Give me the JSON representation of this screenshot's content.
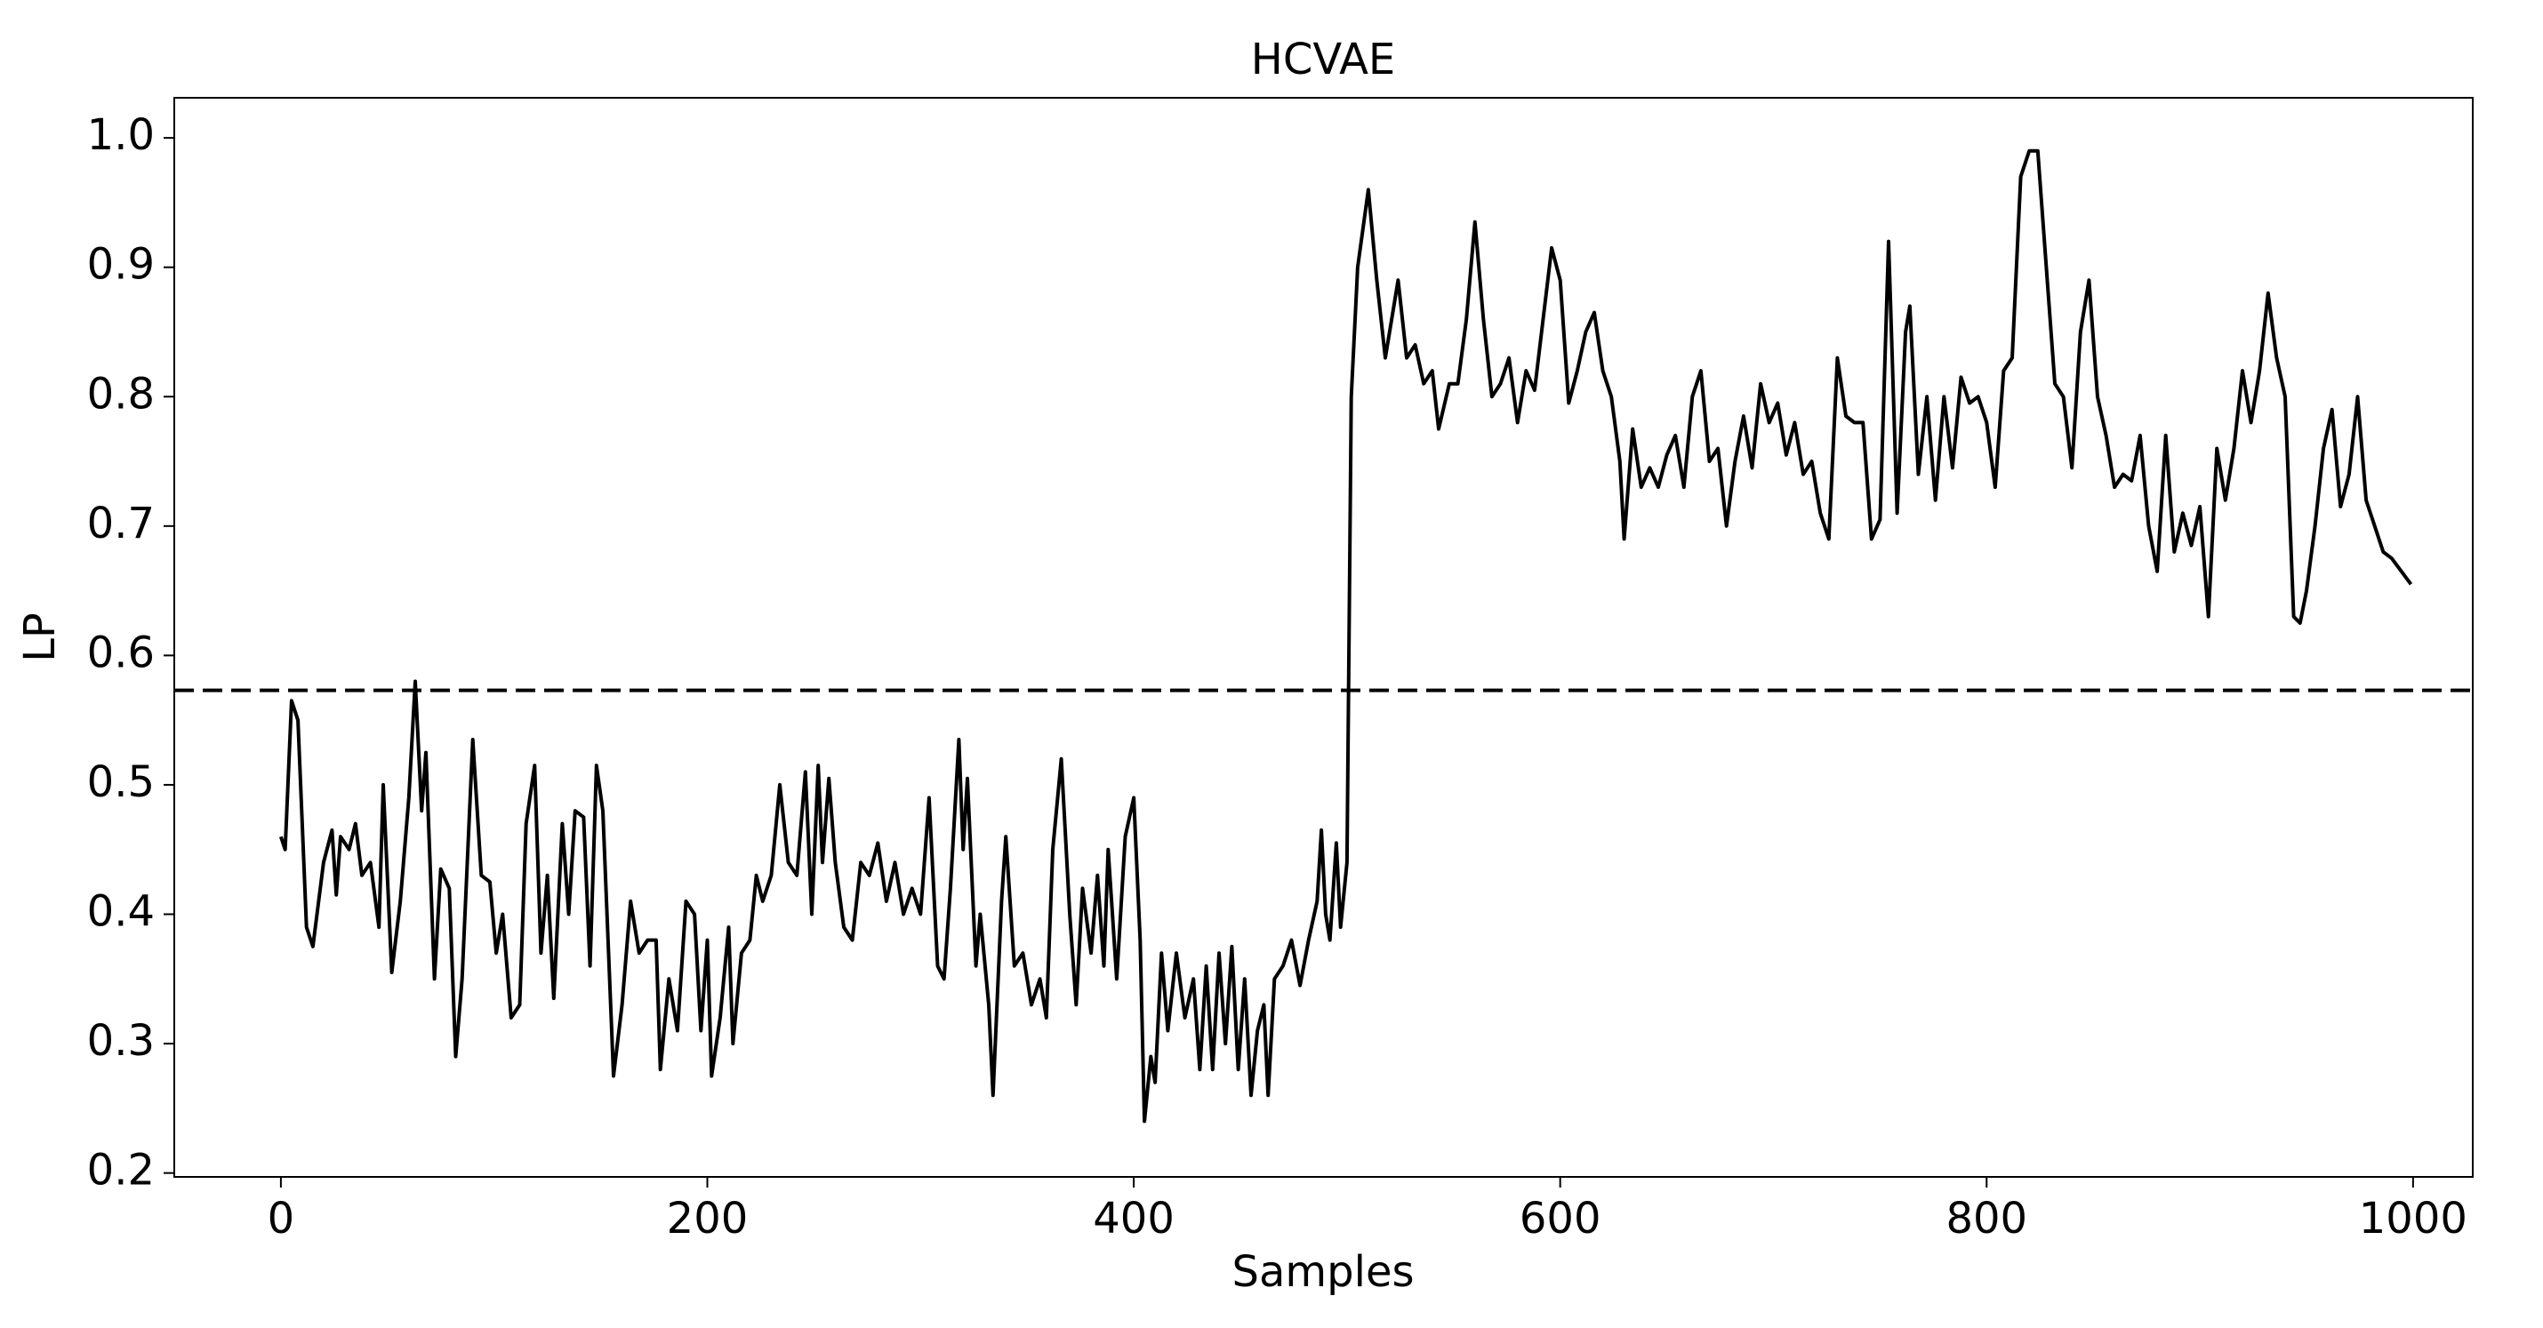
{
  "chart_data": {
    "type": "line",
    "title": "HCVAE",
    "xlabel": "Samples",
    "ylabel": "LP",
    "xlim": [
      -50,
      1028
    ],
    "ylim": [
      0.197,
      1.031
    ],
    "xticks": [
      0,
      200,
      400,
      600,
      800,
      1000
    ],
    "yticks": [
      0.2,
      0.3,
      0.4,
      0.5,
      0.6,
      0.7,
      0.8,
      0.9,
      {
        "value": 1,
        "label": "1.0"
      }
    ],
    "threshold": 0.573,
    "threshold_style": "dashed",
    "grid": false,
    "series": [
      {
        "color": "#000000",
        "x": [
          0,
          2,
          5,
          8,
          12,
          15,
          20,
          24,
          26,
          28,
          32,
          35,
          38,
          42,
          46,
          48,
          52,
          56,
          60,
          63,
          66,
          68,
          72,
          75,
          79,
          82,
          85,
          90,
          94,
          98,
          101,
          104,
          108,
          112,
          115,
          119,
          122,
          125,
          128,
          132,
          135,
          138,
          142,
          145,
          148,
          151,
          156,
          160,
          164,
          168,
          172,
          176,
          178,
          182,
          186,
          190,
          194,
          197,
          200,
          202,
          206,
          210,
          212,
          216,
          220,
          223,
          226,
          230,
          234,
          238,
          242,
          246,
          249,
          252,
          254,
          257,
          260,
          264,
          268,
          272,
          276,
          280,
          284,
          288,
          292,
          296,
          300,
          304,
          308,
          311,
          314,
          318,
          320,
          322,
          326,
          328,
          332,
          334,
          338,
          340,
          344,
          348,
          352,
          356,
          359,
          362,
          366,
          370,
          373,
          376,
          380,
          383,
          386,
          388,
          392,
          396,
          400,
          403,
          405,
          408,
          410,
          413,
          416,
          420,
          424,
          428,
          431,
          434,
          437,
          440,
          443,
          446,
          449,
          452,
          455,
          458,
          461,
          463,
          466,
          470,
          474,
          478,
          482,
          486,
          488,
          490,
          492,
          495,
          497,
          500,
          502,
          505,
          510,
          514,
          518,
          520,
          524,
          528,
          532,
          536,
          540,
          543,
          548,
          552,
          556,
          560,
          564,
          568,
          572,
          576,
          580,
          584,
          588,
          592,
          596,
          600,
          604,
          608,
          612,
          616,
          620,
          624,
          628,
          630,
          634,
          638,
          642,
          646,
          650,
          654,
          658,
          662,
          666,
          670,
          674,
          678,
          682,
          686,
          690,
          694,
          698,
          702,
          706,
          710,
          714,
          718,
          722,
          726,
          730,
          734,
          738,
          742,
          746,
          750,
          754,
          758,
          762,
          764,
          768,
          772,
          776,
          780,
          784,
          788,
          792,
          796,
          800,
          804,
          808,
          812,
          816,
          820,
          824,
          828,
          832,
          836,
          840,
          844,
          848,
          852,
          856,
          860,
          864,
          868,
          872,
          876,
          880,
          884,
          888,
          892,
          896,
          900,
          904,
          908,
          912,
          916,
          920,
          924,
          928,
          932,
          936,
          940,
          944,
          947,
          950,
          954,
          958,
          962,
          966,
          970,
          974,
          978,
          982,
          986,
          990,
          999
        ],
        "values": [
          0.46,
          0.45,
          0.565,
          0.55,
          0.39,
          0.375,
          0.44,
          0.465,
          0.415,
          0.46,
          0.45,
          0.47,
          0.43,
          0.44,
          0.39,
          0.5,
          0.355,
          0.41,
          0.49,
          0.58,
          0.48,
          0.525,
          0.35,
          0.435,
          0.42,
          0.29,
          0.35,
          0.535,
          0.43,
          0.425,
          0.37,
          0.4,
          0.32,
          0.33,
          0.47,
          0.515,
          0.37,
          0.43,
          0.335,
          0.47,
          0.4,
          0.48,
          0.475,
          0.36,
          0.515,
          0.48,
          0.275,
          0.33,
          0.41,
          0.37,
          0.38,
          0.38,
          0.28,
          0.35,
          0.31,
          0.41,
          0.4,
          0.31,
          0.38,
          0.275,
          0.32,
          0.39,
          0.3,
          0.37,
          0.38,
          0.43,
          0.41,
          0.43,
          0.5,
          0.44,
          0.43,
          0.51,
          0.4,
          0.515,
          0.44,
          0.505,
          0.44,
          0.39,
          0.38,
          0.44,
          0.43,
          0.455,
          0.41,
          0.44,
          0.4,
          0.42,
          0.4,
          0.49,
          0.36,
          0.35,
          0.42,
          0.535,
          0.45,
          0.505,
          0.36,
          0.4,
          0.33,
          0.26,
          0.41,
          0.46,
          0.36,
          0.37,
          0.33,
          0.35,
          0.32,
          0.45,
          0.52,
          0.4,
          0.33,
          0.42,
          0.37,
          0.43,
          0.36,
          0.45,
          0.35,
          0.46,
          0.49,
          0.38,
          0.24,
          0.29,
          0.27,
          0.37,
          0.31,
          0.37,
          0.32,
          0.35,
          0.28,
          0.36,
          0.28,
          0.37,
          0.3,
          0.375,
          0.28,
          0.35,
          0.26,
          0.31,
          0.33,
          0.26,
          0.35,
          0.36,
          0.38,
          0.345,
          0.38,
          0.41,
          0.465,
          0.4,
          0.38,
          0.455,
          0.39,
          0.44,
          0.8,
          0.9,
          0.96,
          0.89,
          0.83,
          0.85,
          0.89,
          0.83,
          0.84,
          0.81,
          0.82,
          0.775,
          0.81,
          0.81,
          0.86,
          0.935,
          0.86,
          0.8,
          0.81,
          0.83,
          0.78,
          0.82,
          0.805,
          0.86,
          0.915,
          0.89,
          0.795,
          0.82,
          0.85,
          0.865,
          0.82,
          0.8,
          0.75,
          0.69,
          0.775,
          0.73,
          0.745,
          0.73,
          0.755,
          0.77,
          0.73,
          0.8,
          0.82,
          0.75,
          0.76,
          0.7,
          0.75,
          0.785,
          0.745,
          0.81,
          0.78,
          0.795,
          0.755,
          0.78,
          0.74,
          0.75,
          0.71,
          0.69,
          0.83,
          0.785,
          0.78,
          0.78,
          0.69,
          0.705,
          0.92,
          0.71,
          0.85,
          0.87,
          0.74,
          0.8,
          0.72,
          0.8,
          0.745,
          0.815,
          0.795,
          0.8,
          0.78,
          0.73,
          0.82,
          0.83,
          0.97,
          0.99,
          0.99,
          0.9,
          0.81,
          0.8,
          0.745,
          0.85,
          0.89,
          0.8,
          0.77,
          0.73,
          0.74,
          0.735,
          0.77,
          0.7,
          0.665,
          0.77,
          0.68,
          0.71,
          0.685,
          0.715,
          0.63,
          0.76,
          0.72,
          0.76,
          0.82,
          0.78,
          0.82,
          0.88,
          0.83,
          0.8,
          0.63,
          0.625,
          0.65,
          0.7,
          0.76,
          0.79,
          0.715,
          0.74,
          0.8,
          0.72,
          0.7,
          0.68,
          0.675,
          0.655
        ]
      }
    ]
  }
}
